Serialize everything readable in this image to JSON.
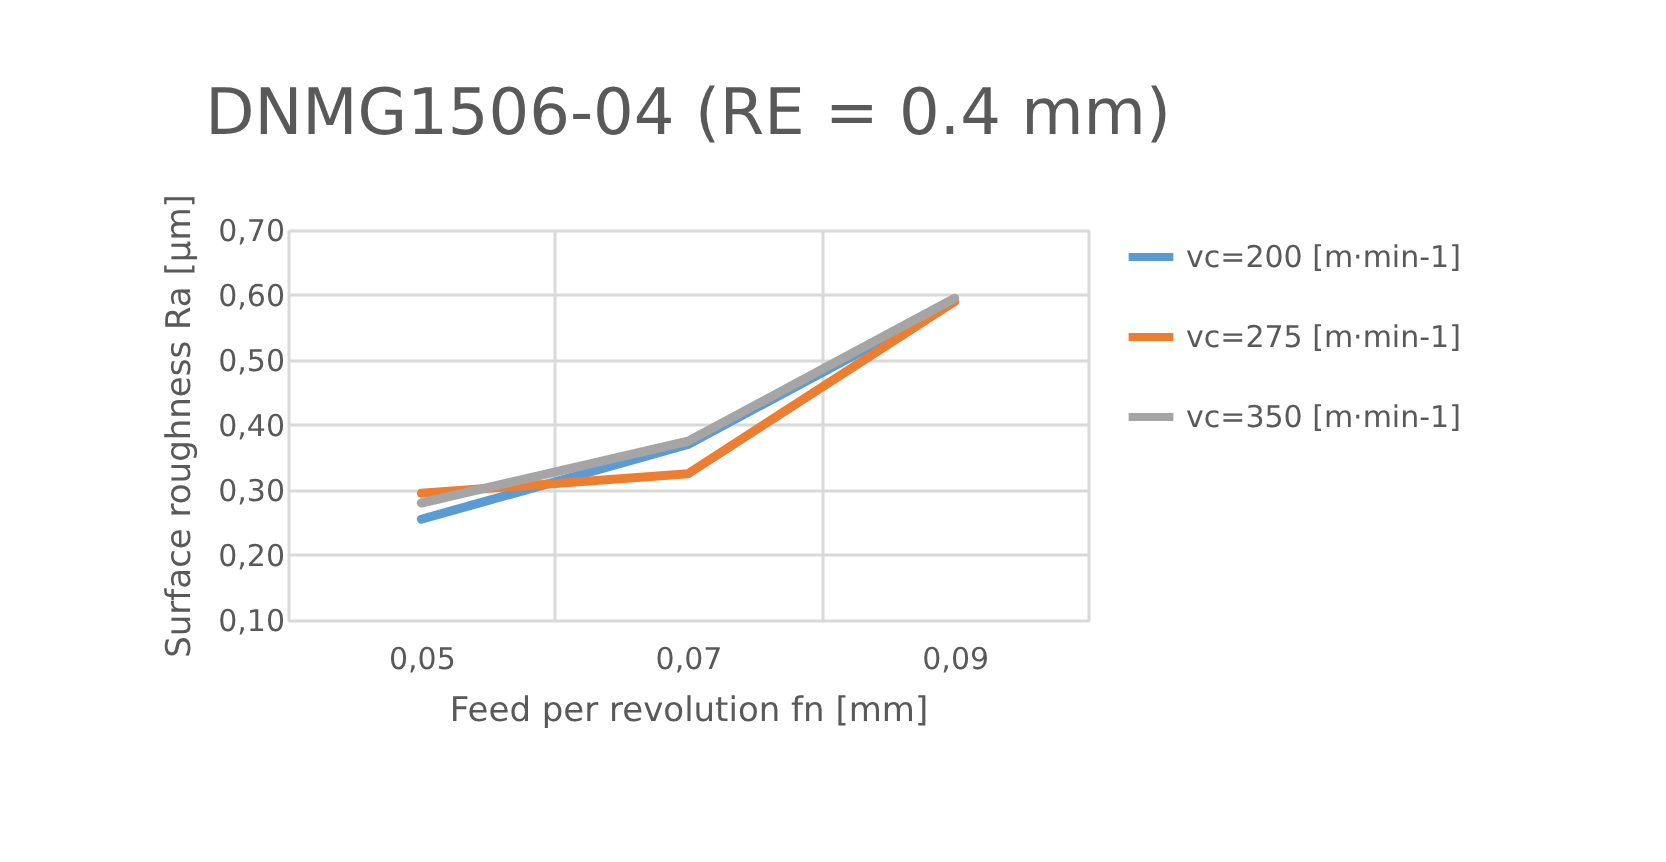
{
  "chart_data": {
    "type": "line",
    "title": "DNMG1506-04 (RE = 0.4 mm)",
    "xlabel": "Feed per revolution fn [mm]",
    "ylabel": "Surface roughness Ra  [µm]",
    "categories": [
      "0,05",
      "0,07",
      "0,09"
    ],
    "series": [
      {
        "name": "vc=200 [m·min-1]",
        "color": "#5b9bd5",
        "values": [
          0.255,
          0.37,
          0.59
        ]
      },
      {
        "name": "vc=275 [m·min-1]",
        "color": "#ed7d31",
        "values": [
          0.295,
          0.325,
          0.59
        ]
      },
      {
        "name": "vc=350 [m·min-1]",
        "color": "#a5a5a5",
        "values": [
          0.28,
          0.375,
          0.595
        ]
      }
    ],
    "ylim": [
      0.1,
      0.7
    ],
    "yticks": [
      {
        "value": 0.1,
        "label": "0,10"
      },
      {
        "value": 0.2,
        "label": "0,20"
      },
      {
        "value": 0.3,
        "label": "0,30"
      },
      {
        "value": 0.4,
        "label": "0,40"
      },
      {
        "value": 0.5,
        "label": "0,50"
      },
      {
        "value": 0.6,
        "label": "0,60"
      },
      {
        "value": 0.7,
        "label": "0,70"
      }
    ],
    "grid": true,
    "legend": "right",
    "marker": "none",
    "line_style": "solid"
  }
}
